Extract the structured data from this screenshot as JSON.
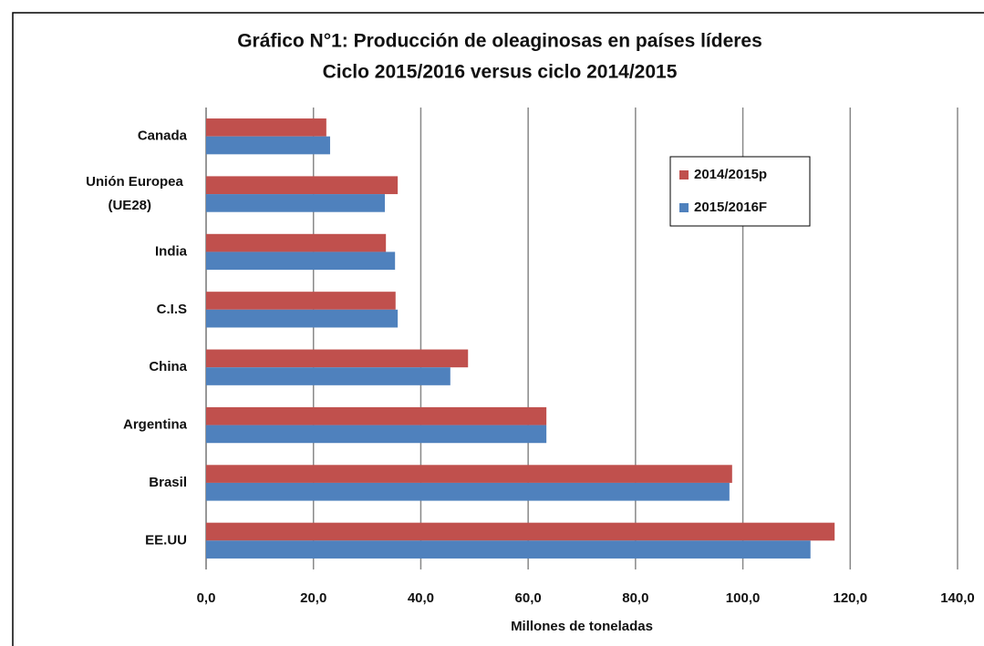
{
  "chart_data": {
    "type": "barh",
    "title": "Gráfico N°1: Producción de oleaginosas en países líderes",
    "subtitle": "Ciclo 2015/2016 versus ciclo 2014/2015",
    "x_label": "Millones de toneladas",
    "categories": [
      "Canada",
      "Unión Europea (UE28)",
      "India",
      "C.I.S",
      "China",
      "Argentina",
      "Brasil",
      "EE.UU"
    ],
    "series": [
      {
        "name": "2014/2015p",
        "color": "#c0504d",
        "values": [
          22.4,
          35.7,
          33.5,
          35.3,
          48.8,
          63.4,
          98.0,
          117.1
        ]
      },
      {
        "name": "2015/2016F",
        "color": "#4f81bd",
        "values": [
          23.1,
          33.3,
          35.2,
          35.7,
          45.5,
          63.4,
          97.5,
          112.6
        ]
      }
    ],
    "xlim": [
      0,
      140
    ],
    "xticks": [
      {
        "value": 0,
        "label": "0,0"
      },
      {
        "value": 20,
        "label": "20,0"
      },
      {
        "value": 40,
        "label": "40,0"
      },
      {
        "value": 60,
        "label": "60,0"
      },
      {
        "value": 80,
        "label": "80,0"
      },
      {
        "value": 100,
        "label": "100,0"
      },
      {
        "value": 120,
        "label": "120,0"
      },
      {
        "value": 140,
        "label": "140,0"
      }
    ],
    "grid": true,
    "legend": "upper right"
  }
}
